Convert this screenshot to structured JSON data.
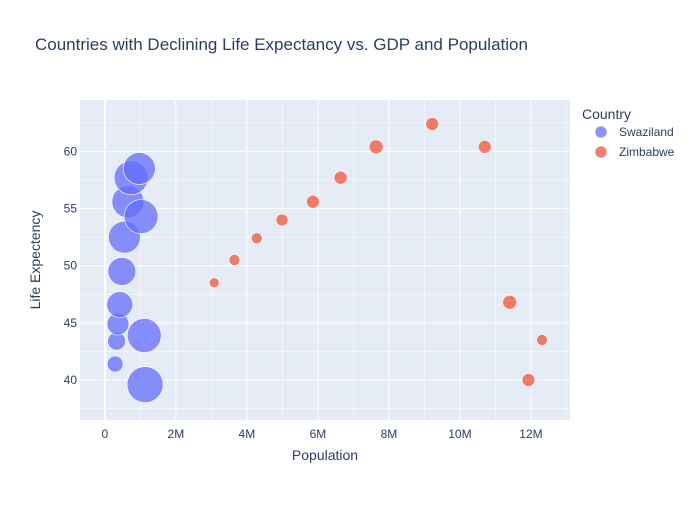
{
  "chart_data": {
    "type": "scatter",
    "title": "Countries with Declining Life Expectancy vs. GDP and Population",
    "xlabel": "Population",
    "ylabel": "Life Expectency",
    "xlim": [
      -700000,
      13100000
    ],
    "ylim": [
      36.5,
      64.5
    ],
    "x_ticks": [
      {
        "value": 0,
        "label": "0"
      },
      {
        "value": 2000000,
        "label": "2M"
      },
      {
        "value": 4000000,
        "label": "4M"
      },
      {
        "value": 6000000,
        "label": "6M"
      },
      {
        "value": 8000000,
        "label": "8M"
      },
      {
        "value": 10000000,
        "label": "10M"
      },
      {
        "value": 12000000,
        "label": "12M"
      }
    ],
    "y_ticks": [
      {
        "value": 40,
        "label": "40"
      },
      {
        "value": 45,
        "label": "45"
      },
      {
        "value": 50,
        "label": "50"
      },
      {
        "value": 55,
        "label": "55"
      },
      {
        "value": 60,
        "label": "60"
      }
    ],
    "grid": true,
    "legend": {
      "title": "Country",
      "position": "top-right"
    },
    "series": [
      {
        "name": "Swaziland",
        "color": "#636efa",
        "points": [
          {
            "x": 290000,
            "y": 41.4,
            "size": 8
          },
          {
            "x": 330000,
            "y": 43.4,
            "size": 9
          },
          {
            "x": 370000,
            "y": 44.9,
            "size": 11
          },
          {
            "x": 420000,
            "y": 46.6,
            "size": 13
          },
          {
            "x": 480000,
            "y": 49.5,
            "size": 14
          },
          {
            "x": 551000,
            "y": 52.5,
            "size": 16
          },
          {
            "x": 649000,
            "y": 55.6,
            "size": 16
          },
          {
            "x": 1021000,
            "y": 54.3,
            "size": 17
          },
          {
            "x": 1110000,
            "y": 43.9,
            "size": 17
          },
          {
            "x": 741000,
            "y": 57.7,
            "size": 17
          },
          {
            "x": 971000,
            "y": 58.5,
            "size": 16
          },
          {
            "x": 1133000,
            "y": 39.6,
            "size": 18
          }
        ]
      },
      {
        "name": "Zimbabwe",
        "color": "#ef553b",
        "points": [
          {
            "x": 3080000,
            "y": 48.5,
            "size": 5
          },
          {
            "x": 3650000,
            "y": 50.5,
            "size": 5.5
          },
          {
            "x": 4280000,
            "y": 52.4,
            "size": 5.5
          },
          {
            "x": 4990000,
            "y": 54.0,
            "size": 6
          },
          {
            "x": 5860000,
            "y": 55.6,
            "size": 6.5
          },
          {
            "x": 6640000,
            "y": 57.7,
            "size": 6.5
          },
          {
            "x": 7640000,
            "y": 60.4,
            "size": 7
          },
          {
            "x": 9220000,
            "y": 62.4,
            "size": 6.5
          },
          {
            "x": 10700000,
            "y": 60.4,
            "size": 6.5
          },
          {
            "x": 11400000,
            "y": 46.8,
            "size": 7
          },
          {
            "x": 11930000,
            "y": 40.0,
            "size": 6.5
          },
          {
            "x": 12310000,
            "y": 43.5,
            "size": 5.5
          }
        ]
      }
    ]
  }
}
